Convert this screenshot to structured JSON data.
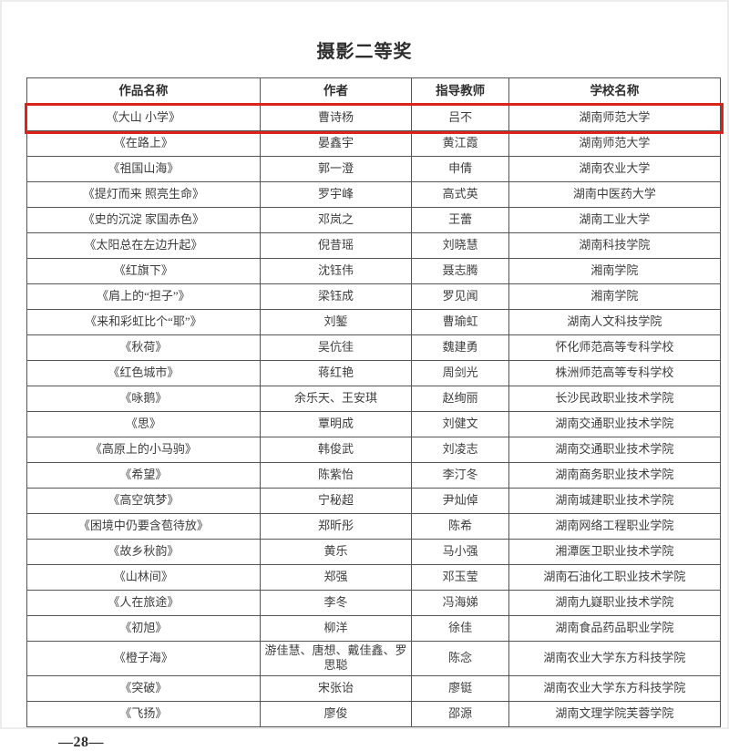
{
  "page": {
    "title": "摄影二等奖",
    "page_number": "—28—",
    "highlight_color": "#d9231b"
  },
  "table": {
    "headers": [
      "作品名称",
      "作者",
      "指导教师",
      "学校名称"
    ],
    "rows": [
      {
        "work": "《大山 小学》",
        "author": "曹诗杨",
        "teacher": "吕不",
        "school": "湖南师范大学",
        "highlighted": true
      },
      {
        "work": "《在路上》",
        "author": "晏鑫宇",
        "teacher": "黄江霞",
        "school": "湖南师范大学",
        "highlighted": false
      },
      {
        "work": "《祖国山海》",
        "author": "郭一澄",
        "teacher": "申倩",
        "school": "湖南农业大学",
        "highlighted": false
      },
      {
        "work": "《提灯而来 照亮生命》",
        "author": "罗宇峰",
        "teacher": "高式英",
        "school": "湖南中医药大学",
        "highlighted": false
      },
      {
        "work": "《史的沉淀 家国赤色》",
        "author": "邓岚之",
        "teacher": "王蕾",
        "school": "湖南工业大学",
        "highlighted": false
      },
      {
        "work": "《太阳总在左边升起》",
        "author": "倪昔瑶",
        "teacher": "刘晓慧",
        "school": "湖南科技学院",
        "highlighted": false
      },
      {
        "work": "《红旗下》",
        "author": "沈钰伟",
        "teacher": "聂志腾",
        "school": "湘南学院",
        "highlighted": false
      },
      {
        "work": "《肩上的“担子”》",
        "author": "梁钰成",
        "teacher": "罗见闻",
        "school": "湘南学院",
        "highlighted": false
      },
      {
        "work": "《来和彩虹比个“耶”》",
        "author": "刘錾",
        "teacher": "曹瑜虹",
        "school": "湖南人文科技学院",
        "highlighted": false
      },
      {
        "work": "《秋荷》",
        "author": "吴伉徍",
        "teacher": "魏建勇",
        "school": "怀化师范高等专科学校",
        "highlighted": false
      },
      {
        "work": "《红色城市》",
        "author": "蒋红艳",
        "teacher": "周剑光",
        "school": "株洲师范高等专科学校",
        "highlighted": false
      },
      {
        "work": "《咏鹅》",
        "author": "余乐天、王安琪",
        "teacher": "赵绚丽",
        "school": "长沙民政职业技术学院",
        "highlighted": false
      },
      {
        "work": "《思》",
        "author": "覃明成",
        "teacher": "刘健文",
        "school": "湖南交通职业技术学院",
        "highlighted": false
      },
      {
        "work": "《高原上的小马驹》",
        "author": "韩俊武",
        "teacher": "刘凌志",
        "school": "湖南交通职业技术学院",
        "highlighted": false
      },
      {
        "work": "《希望》",
        "author": "陈紫怡",
        "teacher": "李汀冬",
        "school": "湖南商务职业技术学院",
        "highlighted": false
      },
      {
        "work": "《高空筑梦》",
        "author": "宁秘超",
        "teacher": "尹灿倬",
        "school": "湖南城建职业技术学院",
        "highlighted": false
      },
      {
        "work": "《困境中仍要含苞待放》",
        "author": "郑昕彤",
        "teacher": "陈希",
        "school": "湖南网络工程职业学院",
        "highlighted": false
      },
      {
        "work": "《故乡秋韵》",
        "author": "黄乐",
        "teacher": "马小强",
        "school": "湘潭医卫职业技术学院",
        "highlighted": false
      },
      {
        "work": "《山林间》",
        "author": "郑强",
        "teacher": "邓玉莹",
        "school": "湖南石油化工职业技术学院",
        "highlighted": false
      },
      {
        "work": "《人在旅途》",
        "author": "李冬",
        "teacher": "冯海娣",
        "school": "湖南九嶷职业技术学院",
        "highlighted": false
      },
      {
        "work": "《初旭》",
        "author": "柳洋",
        "teacher": "徐佳",
        "school": "湖南食品药品职业学院",
        "highlighted": false
      },
      {
        "work": "《橙子海》",
        "author": "游佳慧、唐想、戴佳鑫、罗思聪",
        "teacher": "陈念",
        "school": "湖南农业大学东方科技学院",
        "highlighted": false
      },
      {
        "work": "《突破》",
        "author": "宋张诒",
        "teacher": "廖铤",
        "school": "湖南农业大学东方科技学院",
        "highlighted": false
      },
      {
        "work": "《飞扬》",
        "author": "廖俊",
        "teacher": "邵源",
        "school": "湖南文理学院芙蓉学院",
        "highlighted": false
      }
    ]
  }
}
